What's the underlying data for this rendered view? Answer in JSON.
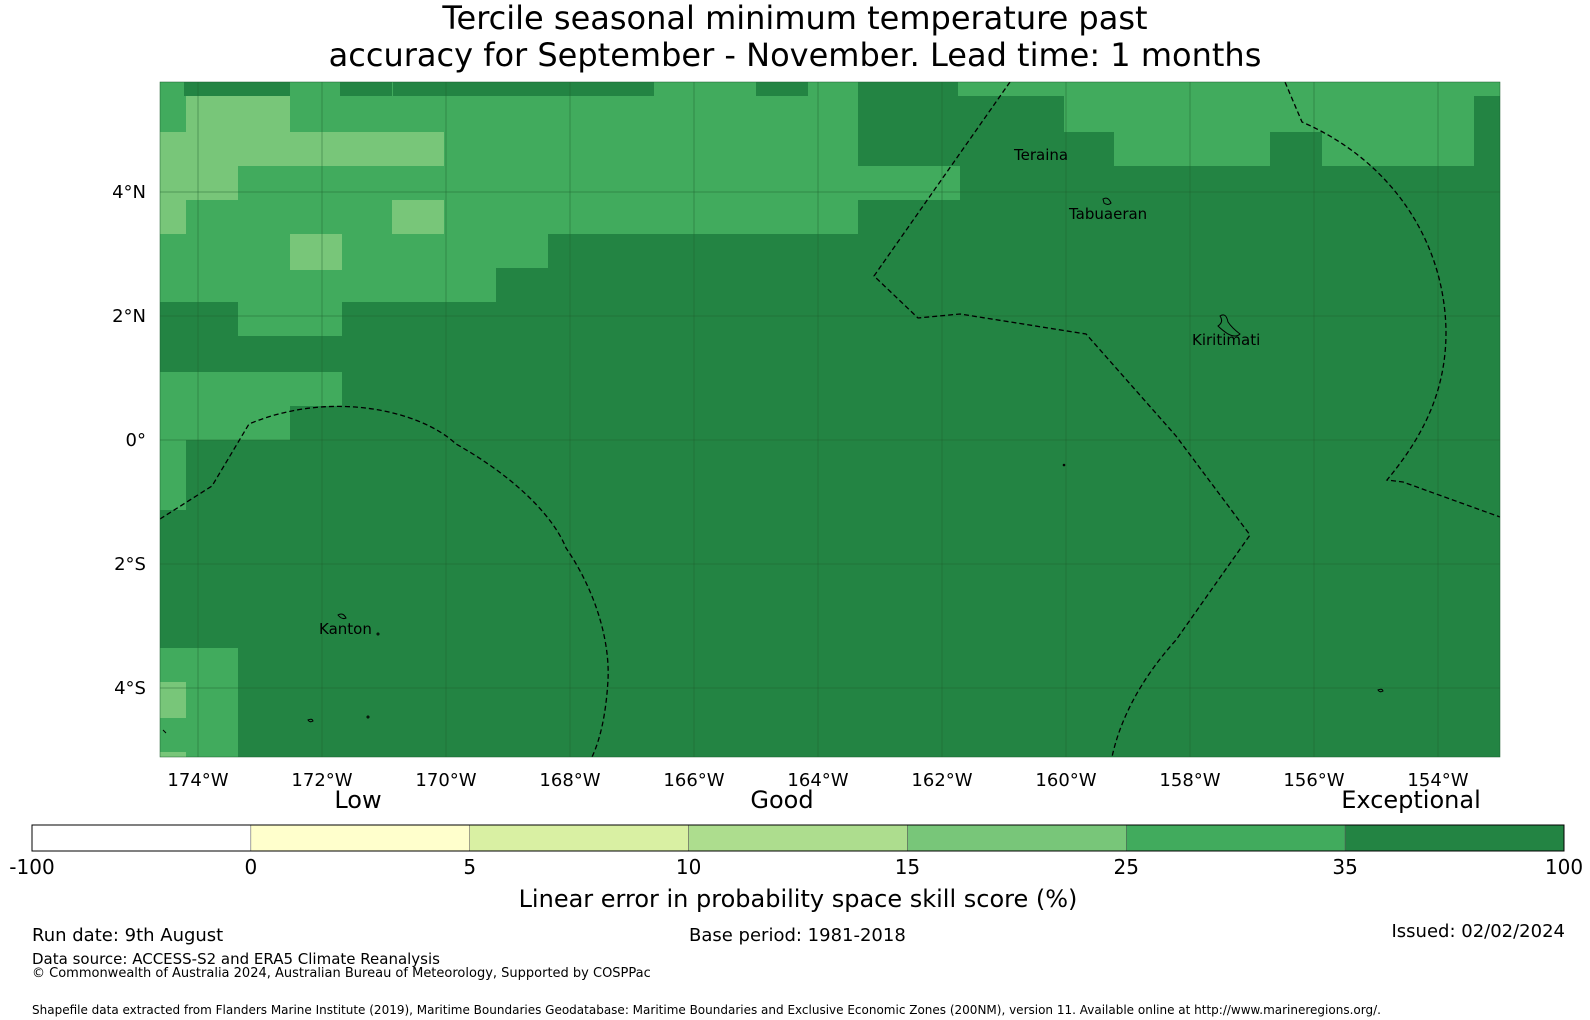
{
  "title": {
    "line1": "Tercile seasonal minimum temperature past",
    "line2": "accuracy for September - November. Lead time: 1 months"
  },
  "map": {
    "lat_labels": [
      "4°N",
      "2°N",
      "0°",
      "2°S",
      "4°S"
    ],
    "lon_labels": [
      "174°W",
      "172°W",
      "170°W",
      "168°W",
      "166°W",
      "164°W",
      "162°W",
      "160°W",
      "158°W",
      "156°W",
      "154°W"
    ],
    "place_labels": [
      "Teraina",
      "Tabuaeran",
      "Kiritimati",
      "Kanton"
    ],
    "category_colors": {
      "c15_25": "#78c679",
      "c25_35": "#41ab5d",
      "c35_100": "#238443"
    }
  },
  "colorbar": {
    "category_labels": [
      "Low",
      "Good",
      "Exceptional"
    ],
    "tick_labels": [
      "-100",
      "0",
      "5",
      "10",
      "15",
      "25",
      "35",
      "100"
    ],
    "colors": [
      "#ffffff",
      "#ffffcc",
      "#d9f0a3",
      "#addd8e",
      "#78c679",
      "#41ab5d",
      "#238443"
    ],
    "axis_label": "Linear error in probability space skill score (%)"
  },
  "footer": {
    "run_date": "Run date: 9th August",
    "base_period": "Base period: 1981-2018",
    "issued": "Issued: 02/02/2024",
    "data_source": "Data source: ACCESS-S2 and ERA5 Climate Reanalysis",
    "copyright": "© Commonwealth of Australia 2024, Australian Bureau of Meteorology, Supported by COSPPac",
    "shapefile": "Shapefile data extracted from Flanders Marine Institute (2019), Maritime Boundaries Geodatabase: Maritime Boundaries and Exclusive Economic Zones (200NM), version 11. Available online at http://www.marineregions.org/."
  }
}
